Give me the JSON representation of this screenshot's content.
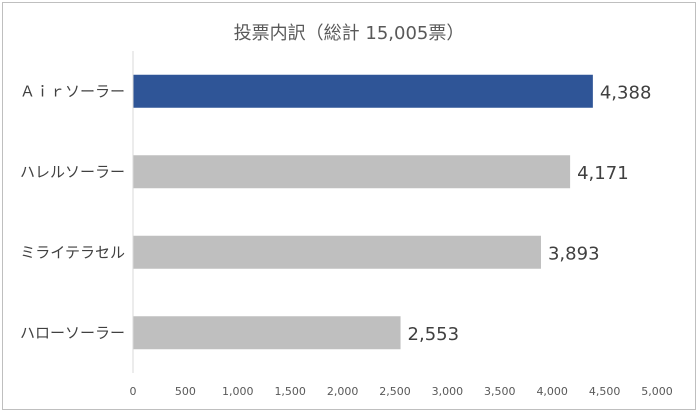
{
  "chart_data": {
    "type": "bar",
    "orientation": "horizontal",
    "title": "投票内訳（総計 15,005票）",
    "categories": [
      "Ａｉｒソーラー",
      "ハレルソーラー",
      "ミライテラセル",
      "ハローソーラー"
    ],
    "values": [
      4388,
      4171,
      3893,
      2553
    ],
    "value_labels": [
      "4,388",
      "4,171",
      "3,893",
      "2,553"
    ],
    "xlim": [
      0,
      5000
    ],
    "xticks": [
      0,
      500,
      1000,
      1500,
      2000,
      2500,
      3000,
      3500,
      4000,
      4500,
      5000
    ],
    "xtick_labels": [
      "0",
      "500",
      "1,000",
      "1,500",
      "2,000",
      "2,500",
      "3,000",
      "3,500",
      "4,000",
      "4,500",
      "5,000"
    ],
    "grid": false,
    "legend": "none",
    "colors": {
      "highlight": "#2f5597",
      "default": "#bfbfbf",
      "axis": "#d9d9d9"
    },
    "highlight_index": 0
  }
}
